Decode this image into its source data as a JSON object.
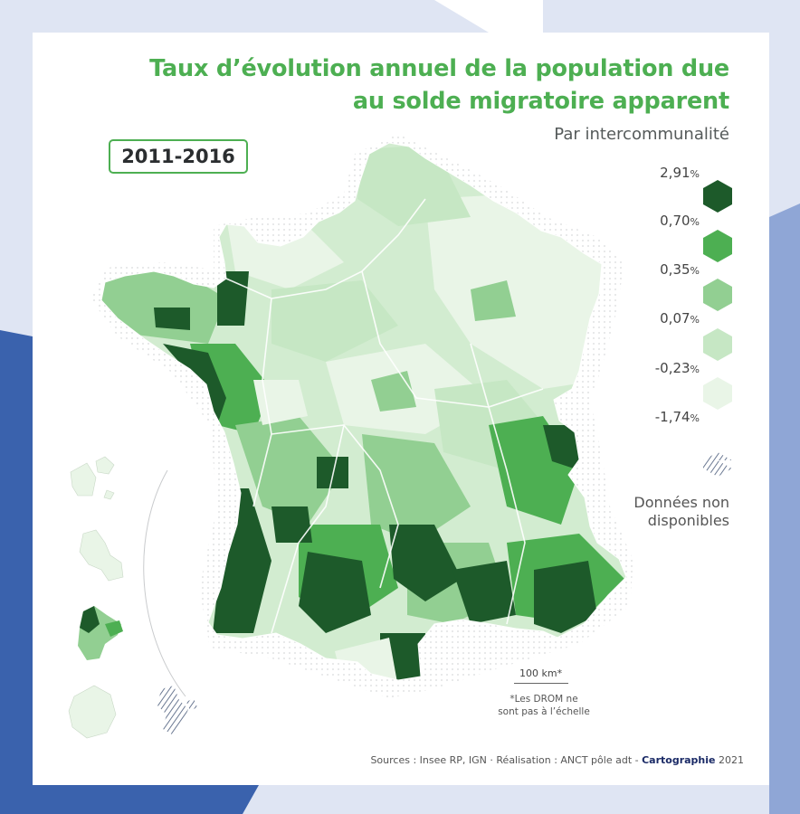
{
  "title_line1": "Taux d’évolution annuel de la population due",
  "title_line2": "au solde migratoire apparent",
  "subtitle": "Par intercommunalité",
  "period": "2011-2016",
  "legend": {
    "breaks": [
      {
        "value": "2,91",
        "unit": "%"
      },
      {
        "value": "0,70",
        "unit": "%"
      },
      {
        "value": "0,35",
        "unit": "%"
      },
      {
        "value": "0,07",
        "unit": "%"
      },
      {
        "value": "-0,23",
        "unit": "%"
      },
      {
        "value": "-1,74",
        "unit": "%"
      }
    ],
    "classes": [
      {
        "color": "#1d5a2a"
      },
      {
        "color": "#4daf52"
      },
      {
        "color": "#92cf92"
      },
      {
        "color": "#c6e7c4"
      },
      {
        "color": "#e9f5e7"
      }
    ],
    "na_line1": "Données non",
    "na_line2": "disponibles"
  },
  "scale": {
    "label": "100 km*"
  },
  "drom_note_line1": "*Les DROM ne",
  "drom_note_line2": "sont pas à l’échelle",
  "sources": {
    "prefix": "Sources : Insee RP, IGN · Réalisation : ANCT pôle adt - ",
    "brand": "Cartographie",
    "year": " 2021"
  },
  "colors": {
    "accent": "#4daf52",
    "frame_blue": "#3a62ad",
    "frame_light": "#dfe5f3"
  }
}
